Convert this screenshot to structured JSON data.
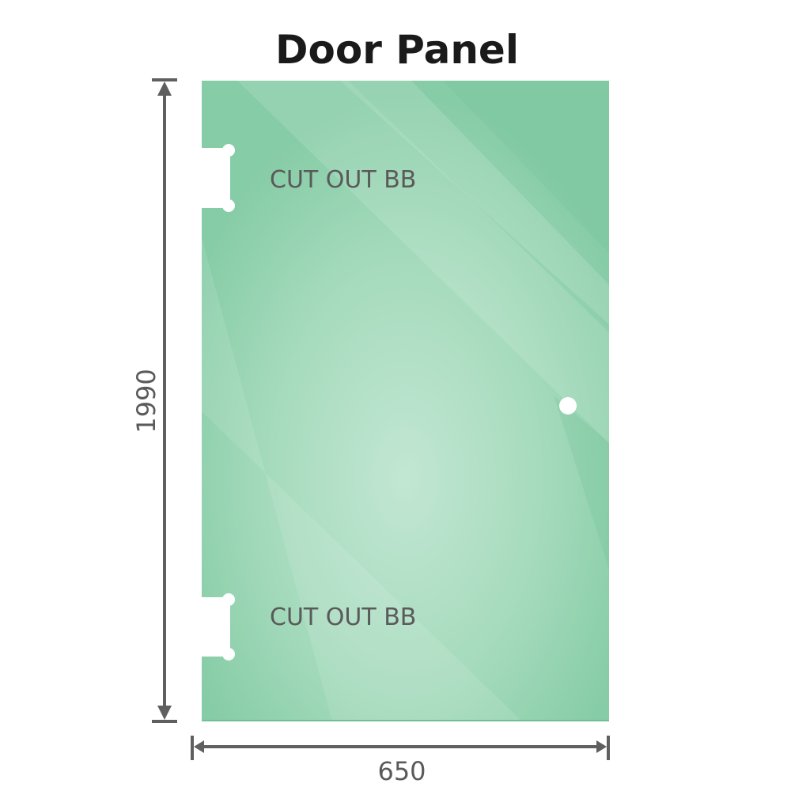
{
  "title": "Door Panel",
  "cutouts": [
    {
      "label": "CUT OUT BB"
    },
    {
      "label": "CUT OUT BB"
    }
  ],
  "dimensions": {
    "height": "1990",
    "width": "650"
  },
  "colors": {
    "glass": "#8ccfaa",
    "glass_light": "#bfe5d0",
    "dimension_line": "#5f5f5f",
    "title": "#1a1a1a"
  }
}
